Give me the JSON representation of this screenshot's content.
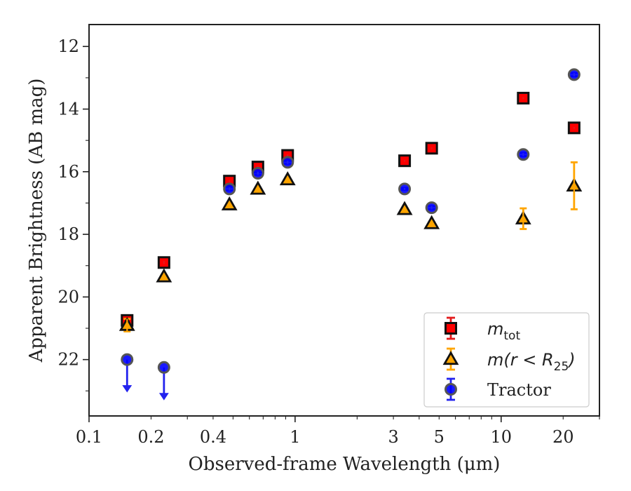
{
  "chart_data": {
    "type": "scatter",
    "title": "",
    "xlabel": "Observed-frame Wavelength (μm)",
    "ylabel": "Apparent Brightness (AB mag)",
    "xscale": "log",
    "xlim": [
      0.1,
      30
    ],
    "ylim": [
      23.8,
      11.3
    ],
    "y_inverted": true,
    "grid": false,
    "legend_position": "lower-right",
    "x_ticks": [
      {
        "value": 0.1,
        "label": "0.1"
      },
      {
        "value": 0.2,
        "label": "0.2"
      },
      {
        "value": 0.4,
        "label": "0.4"
      },
      {
        "value": 1,
        "label": "1"
      },
      {
        "value": 3,
        "label": "3"
      },
      {
        "value": 5,
        "label": "5"
      },
      {
        "value": 10,
        "label": "10"
      },
      {
        "value": 20,
        "label": "20"
      }
    ],
    "y_ticks": [
      {
        "value": 12,
        "label": "12"
      },
      {
        "value": 14,
        "label": "14"
      },
      {
        "value": 16,
        "label": "16"
      },
      {
        "value": 18,
        "label": "18"
      },
      {
        "value": 20,
        "label": "20"
      },
      {
        "value": 22,
        "label": "22"
      }
    ],
    "series": [
      {
        "key": "mtot",
        "legend_main": "m",
        "legend_sub": "tot",
        "marker": "square",
        "color": "#ff0000",
        "errcolor": "#e31a1c",
        "points": [
          {
            "x": 0.153,
            "y": 20.75,
            "err": 0.08
          },
          {
            "x": 0.231,
            "y": 18.9,
            "err": 0.05
          },
          {
            "x": 0.48,
            "y": 16.3,
            "err": 0.03
          },
          {
            "x": 0.66,
            "y": 15.85,
            "err": 0.03
          },
          {
            "x": 0.92,
            "y": 15.48,
            "err": 0.03
          },
          {
            "x": 3.4,
            "y": 15.65,
            "err": 0.03
          },
          {
            "x": 4.6,
            "y": 15.25,
            "err": 0.03
          },
          {
            "x": 12.8,
            "y": 13.65,
            "err": 0.03
          },
          {
            "x": 22.6,
            "y": 14.6,
            "err": 0.03
          }
        ]
      },
      {
        "key": "mr25",
        "legend_main": "m(r < R",
        "legend_sub": "25",
        "legend_tail": ")",
        "marker": "triangle",
        "color": "#ffa500",
        "errcolor": "#ffa500",
        "points": [
          {
            "x": 0.153,
            "y": 20.9,
            "err": 0.2
          },
          {
            "x": 0.231,
            "y": 19.35,
            "err": 0.05
          },
          {
            "x": 0.48,
            "y": 17.05,
            "err": 0.03
          },
          {
            "x": 0.66,
            "y": 16.55,
            "err": 0.03
          },
          {
            "x": 0.92,
            "y": 16.25,
            "err": 0.03
          },
          {
            "x": 3.4,
            "y": 17.2,
            "err": 0.03
          },
          {
            "x": 4.6,
            "y": 17.65,
            "err": 0.03
          },
          {
            "x": 12.8,
            "y": 17.5,
            "err": 0.33
          },
          {
            "x": 22.6,
            "y": 16.45,
            "err": 0.75
          }
        ]
      },
      {
        "key": "tractor",
        "legend_main": "Tractor",
        "marker": "circle",
        "color": "#0000ff",
        "errcolor": "#2222ee",
        "points": [
          {
            "x": 0.153,
            "y": 22.0,
            "upper_limit": true
          },
          {
            "x": 0.231,
            "y": 22.25,
            "upper_limit": true
          },
          {
            "x": 0.48,
            "y": 16.55,
            "err": 0.05
          },
          {
            "x": 0.66,
            "y": 16.05,
            "err": 0.05
          },
          {
            "x": 0.92,
            "y": 15.7,
            "err": 0.05
          },
          {
            "x": 3.4,
            "y": 16.55,
            "err": 0.03
          },
          {
            "x": 4.6,
            "y": 17.15,
            "err": 0.05
          },
          {
            "x": 12.8,
            "y": 15.45,
            "err": 0.05
          },
          {
            "x": 22.6,
            "y": 12.9,
            "err": 0.05
          }
        ]
      }
    ]
  }
}
